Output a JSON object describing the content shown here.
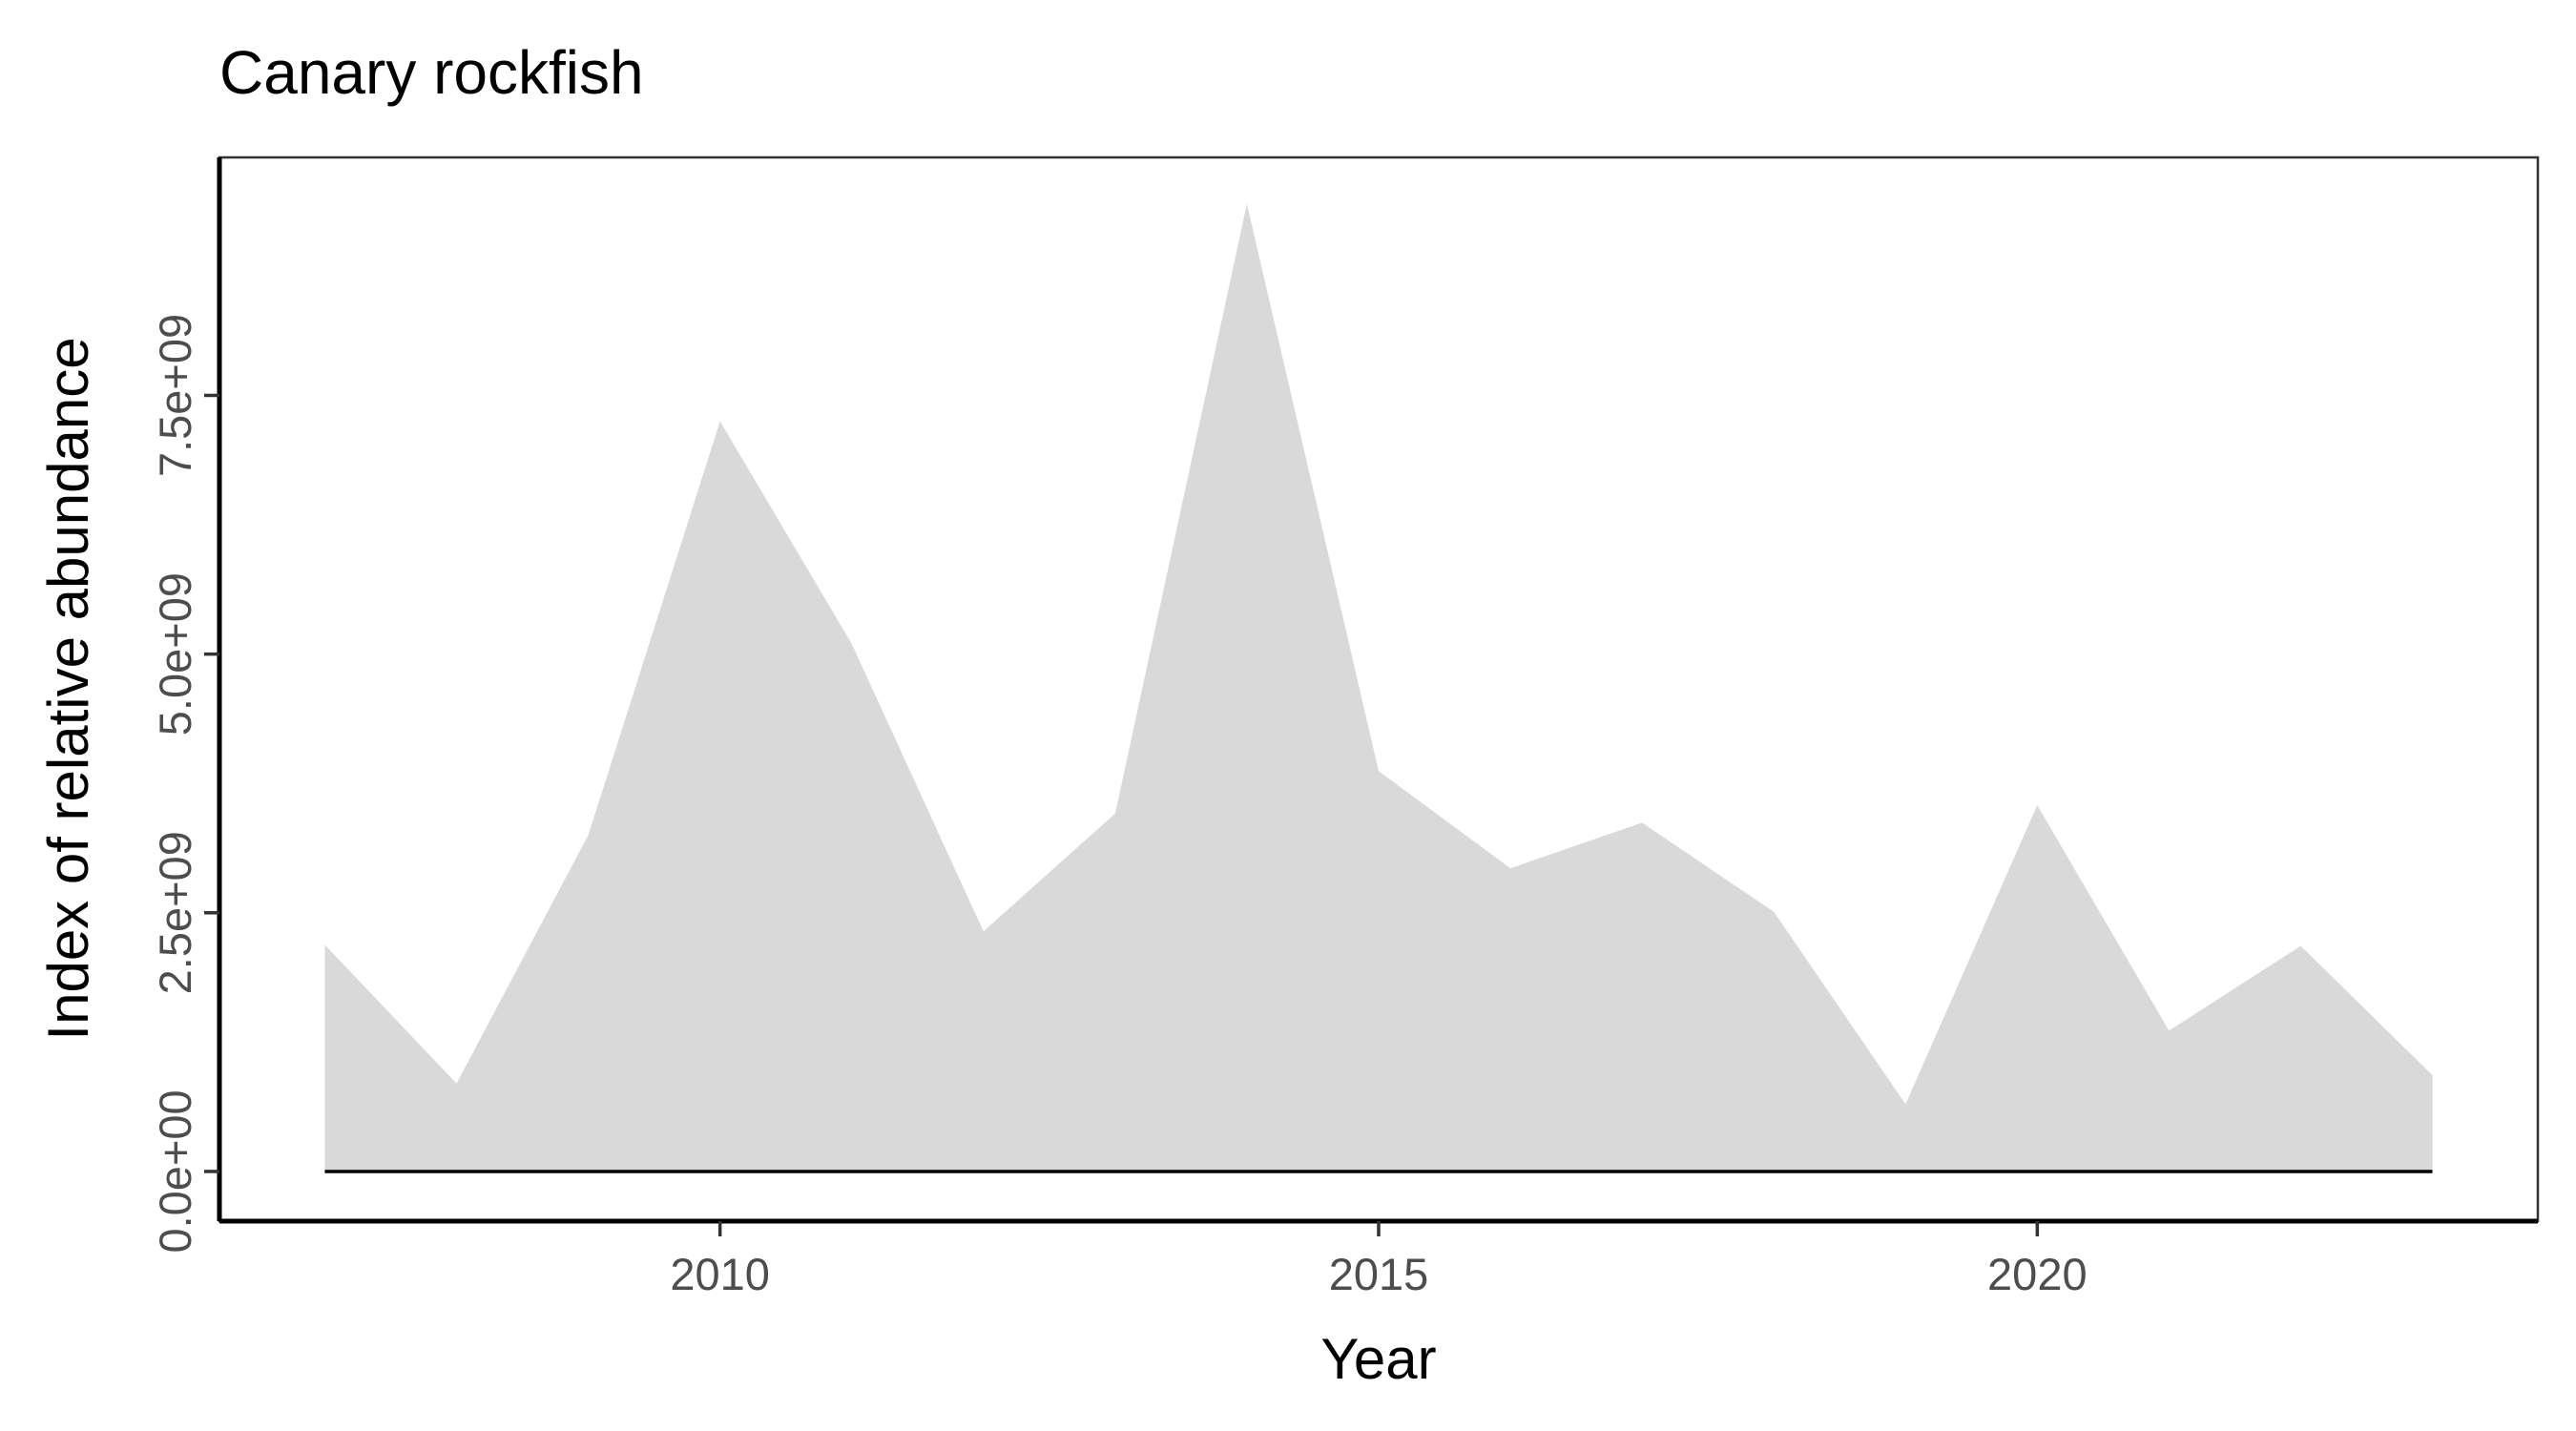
{
  "chart_data": {
    "type": "area",
    "title": "Canary rockfish",
    "xlabel": "Year",
    "ylabel": "Index of relative abundance",
    "x": [
      2007,
      2008,
      2009,
      2010,
      2011,
      2012,
      2013,
      2014,
      2015,
      2016,
      2017,
      2018,
      2019,
      2020,
      2021,
      2022,
      2023
    ],
    "values": [
      2190000000,
      850000000,
      3250000000,
      7250000000,
      5100000000,
      2320000000,
      3460000000,
      9350000000,
      3870000000,
      2930000000,
      3370000000,
      2510000000,
      650000000,
      3540000000,
      1360000000,
      2180000000,
      930000000
    ],
    "xlim": [
      2006.2,
      2023.8
    ],
    "ylim": [
      -480000000,
      9800000000
    ],
    "x_ticks": [
      2010,
      2015,
      2020
    ],
    "x_tick_labels": [
      "2010",
      "2015",
      "2020"
    ],
    "y_ticks": [
      0,
      2500000000,
      5000000000,
      7500000000
    ],
    "y_tick_labels": [
      "0.0e+00",
      "2.5e+09",
      "5.0e+09",
      "7.5e+09"
    ],
    "grid": false,
    "fill_color": "#d9d9d9",
    "line_color": "#000000"
  }
}
